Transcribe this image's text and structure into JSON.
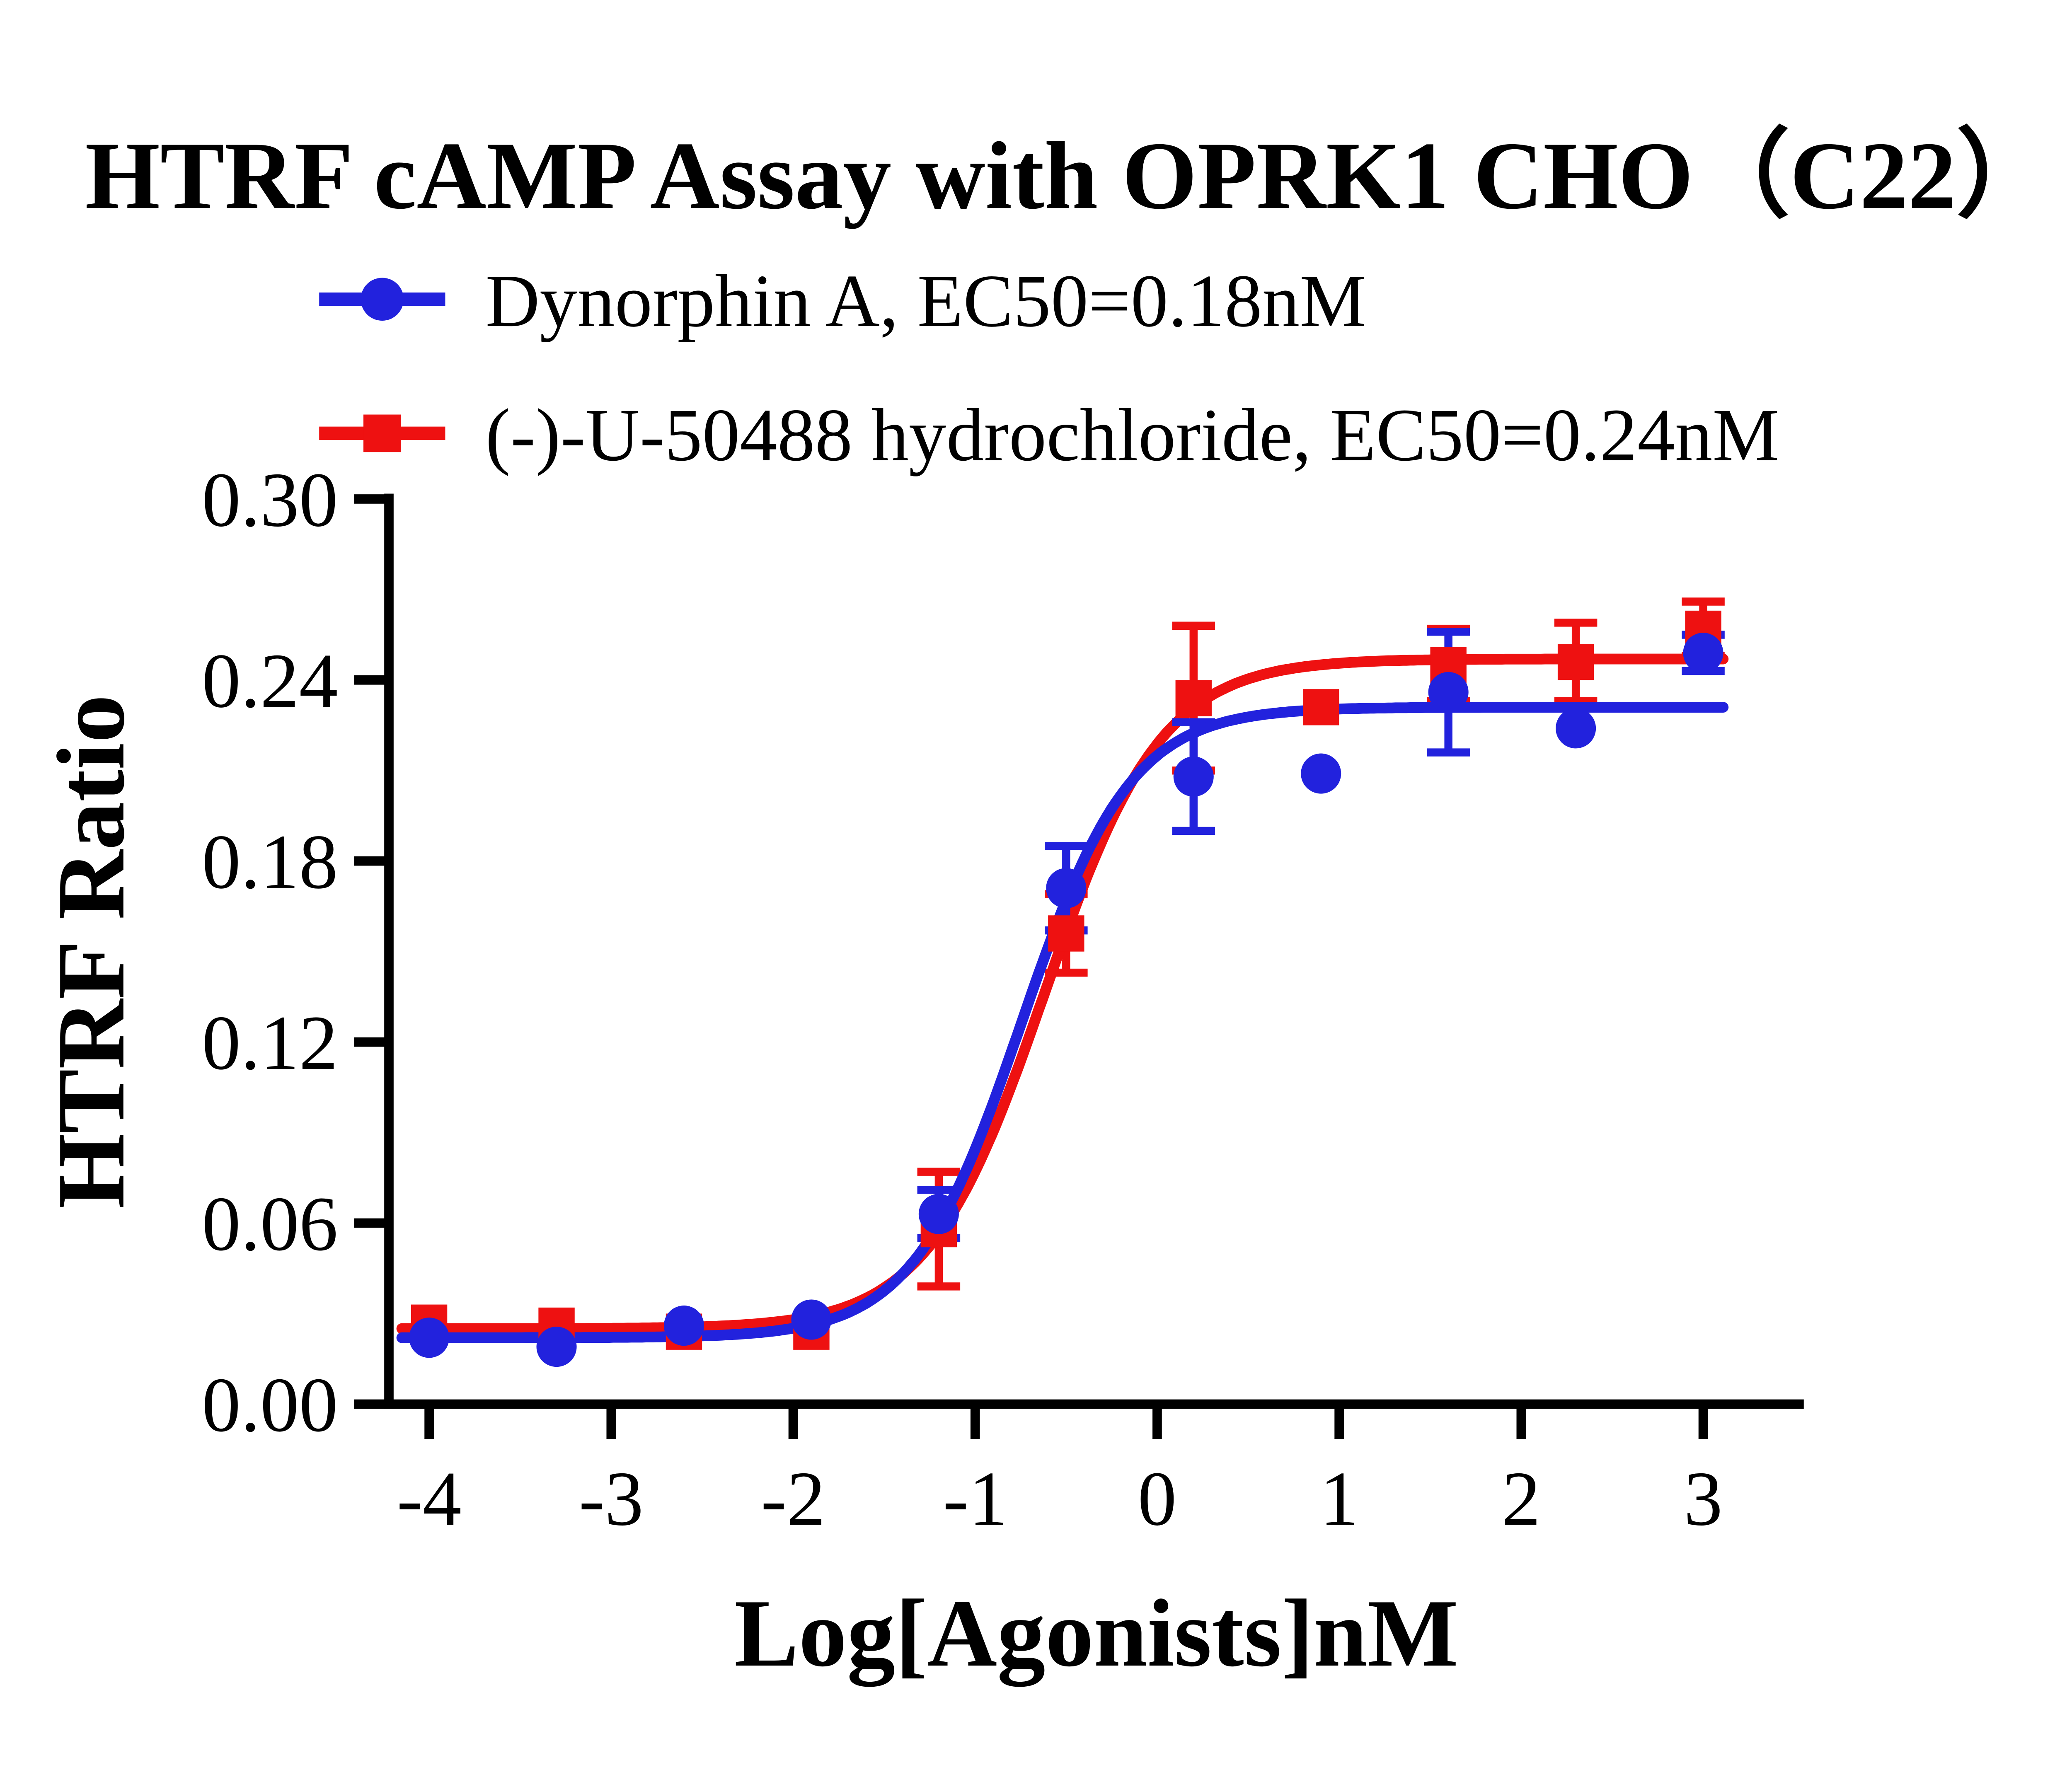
{
  "title": "HTRF cAMP Assay with OPRK1 CHO（C22）",
  "chart_data": {
    "type": "line",
    "title": "HTRF cAMP Assay with OPRK1 CHO（C22）",
    "xlabel": "Log[Agonists]nM",
    "ylabel": "HTRF Ratio",
    "xlim": [
      -4,
      3
    ],
    "ylim": [
      0,
      0.3
    ],
    "x_ticks": [
      -4,
      -3,
      -2,
      -1,
      0,
      1,
      2,
      3
    ],
    "x_tick_labels": [
      "-4",
      "-3",
      "-2",
      "-1",
      "0",
      "1",
      "2",
      "3"
    ],
    "y_ticks": [
      0.0,
      0.06,
      0.12,
      0.18,
      0.24,
      0.3
    ],
    "y_tick_labels": [
      "0.00",
      "0.06",
      "0.12",
      "0.18",
      "0.24",
      "0.30"
    ],
    "grid": false,
    "legend_position": "top-left",
    "series": [
      {
        "id": "dynorphin-a",
        "name": "Dynorphin A,  EC50=0.18nM",
        "ec50_nM": 0.18,
        "color": "#2222dd",
        "marker": "circle",
        "x": [
          -4,
          -3.3,
          -2.6,
          -1.9,
          -1.2,
          -0.5,
          0.2,
          0.9,
          1.6,
          2.3,
          3.0
        ],
        "y": [
          0.022,
          0.019,
          0.026,
          0.028,
          0.063,
          0.171,
          0.208,
          0.209,
          0.236,
          0.224,
          0.249
        ],
        "yerr": [
          0,
          0,
          0,
          0,
          0.008,
          0.014,
          0.018,
          0,
          0.02,
          0,
          0.006
        ],
        "fit": {
          "bottom": 0.022,
          "top": 0.231,
          "logEC50": -0.745,
          "hill": 1.45
        }
      },
      {
        "id": "u50488",
        "name": "(-)-U-50488 hydrochloride,  EC50=0.24nM",
        "ec50_nM": 0.24,
        "color": "#ee1111",
        "marker": "square",
        "x": [
          -4,
          -3.3,
          -2.6,
          -1.9,
          -1.2,
          -0.5,
          0.2,
          0.9,
          1.6,
          2.3,
          3.0
        ],
        "y": [
          0.027,
          0.026,
          0.024,
          0.024,
          0.058,
          0.156,
          0.234,
          0.231,
          0.245,
          0.246,
          0.257
        ],
        "yerr": [
          0,
          0,
          0,
          0,
          0.019,
          0.013,
          0.024,
          0,
          0.012,
          0.013,
          0.009
        ],
        "fit": {
          "bottom": 0.025,
          "top": 0.247,
          "logEC50": -0.62,
          "hill": 1.35
        }
      }
    ]
  }
}
